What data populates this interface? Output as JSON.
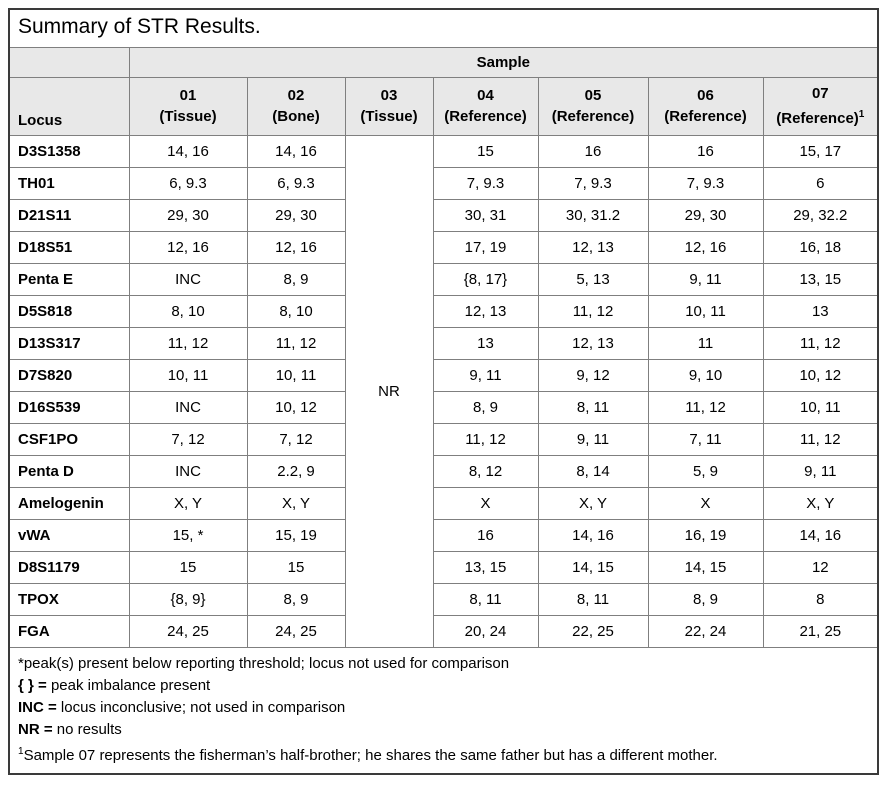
{
  "title": "Summary of STR Results.",
  "table": {
    "sample_header": "Sample",
    "locus_header": "Locus",
    "columns": [
      {
        "id": "01",
        "type": "(Tissue)",
        "sup": ""
      },
      {
        "id": "02",
        "type": "(Bone)",
        "sup": ""
      },
      {
        "id": "03",
        "type": "(Tissue)",
        "sup": ""
      },
      {
        "id": "04",
        "type": "(Reference)",
        "sup": ""
      },
      {
        "id": "05",
        "type": "(Reference)",
        "sup": ""
      },
      {
        "id": "06",
        "type": "(Reference)",
        "sup": ""
      },
      {
        "id": "07",
        "type": "(Reference)",
        "sup": "1"
      }
    ],
    "nr_value": "NR",
    "nr_column": "03",
    "rows": [
      {
        "locus": "D3S1358",
        "values": [
          "14, 16",
          "14, 16",
          "15",
          "16",
          "16",
          "15, 17"
        ]
      },
      {
        "locus": "TH01",
        "values": [
          "6, 9.3",
          "6, 9.3",
          "7, 9.3",
          "7, 9.3",
          "7, 9.3",
          "6"
        ]
      },
      {
        "locus": "D21S11",
        "values": [
          "29, 30",
          "29, 30",
          "30, 31",
          "30, 31.2",
          "29, 30",
          "29, 32.2"
        ]
      },
      {
        "locus": "D18S51",
        "values": [
          "12, 16",
          "12, 16",
          "17, 19",
          "12, 13",
          "12, 16",
          "16, 18"
        ]
      },
      {
        "locus": "Penta E",
        "values": [
          "INC",
          "8, 9",
          "{8, 17}",
          "5, 13",
          "9, 11",
          "13, 15"
        ]
      },
      {
        "locus": "D5S818",
        "values": [
          "8, 10",
          "8, 10",
          "12, 13",
          "11, 12",
          "10, 11",
          "13"
        ]
      },
      {
        "locus": "D13S317",
        "values": [
          "11, 12",
          "11, 12",
          "13",
          "12, 13",
          "11",
          "11, 12"
        ]
      },
      {
        "locus": "D7S820",
        "values": [
          "10, 11",
          "10, 11",
          "9, 11",
          "9, 12",
          "9, 10",
          "10, 12"
        ]
      },
      {
        "locus": "D16S539",
        "values": [
          "INC",
          "10, 12",
          "8, 9",
          "8, 11",
          "11, 12",
          "10, 11"
        ]
      },
      {
        "locus": "CSF1PO",
        "values": [
          "7, 12",
          "7, 12",
          "11, 12",
          "9, 11",
          "7, 11",
          "11, 12"
        ]
      },
      {
        "locus": "Penta D",
        "values": [
          "INC",
          "2.2, 9",
          "8, 12",
          "8, 14",
          "5, 9",
          "9, 11"
        ]
      },
      {
        "locus": "Amelogenin",
        "values": [
          "X, Y",
          "X, Y",
          "X",
          "X, Y",
          "X",
          "X, Y"
        ]
      },
      {
        "locus": "vWA",
        "values": [
          "15, *",
          "15, 19",
          "16",
          "14, 16",
          "16, 19",
          "14, 16"
        ]
      },
      {
        "locus": "D8S1179",
        "values": [
          "15",
          "15",
          "13, 15",
          "14, 15",
          "14, 15",
          "12"
        ]
      },
      {
        "locus": "TPOX",
        "values": [
          "{8, 9}",
          "8, 9",
          "8, 11",
          "8, 11",
          "8, 9",
          "8"
        ]
      },
      {
        "locus": "FGA",
        "values": [
          "24, 25",
          "24, 25",
          "20, 24",
          "22, 25",
          "22, 24",
          "21, 25"
        ]
      }
    ]
  },
  "footnotes": {
    "line1": "*peak(s) present below reporting threshold; locus not used for comparison",
    "line2_bold": "{ } =",
    "line2_rest": " peak imbalance present",
    "line3_bold": "INC =",
    "line3_rest": " locus inconclusive; not used in comparison",
    "line4_bold": "NR =",
    "line4_rest": " no results",
    "line5_sup": "1",
    "line5_rest": "Sample 07 represents the fisherman’s half-brother; he shares the same father but has a different mother."
  },
  "colors": {
    "header_bg": "#E8E8E8",
    "border_inner": "#7F7F7F",
    "border_outer": "#3A3A3A",
    "text": "#000000",
    "background": "#FFFFFF"
  }
}
